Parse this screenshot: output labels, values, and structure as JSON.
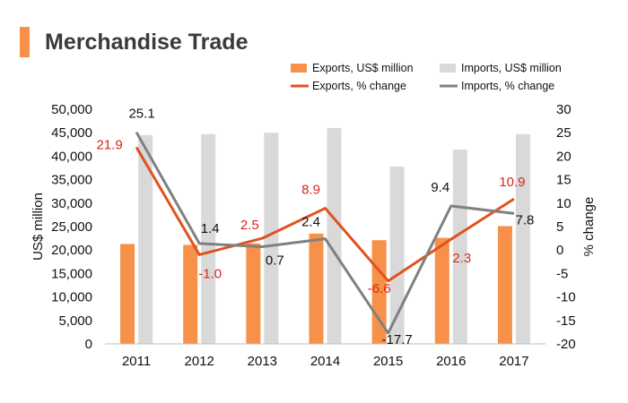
{
  "title": "Merchandise Trade",
  "chart_data": {
    "type": "bar",
    "categories": [
      "2011",
      "2012",
      "2013",
      "2014",
      "2015",
      "2016",
      "2017"
    ],
    "series": [
      {
        "name": "Exports, US$ million",
        "kind": "bar",
        "axis": "left",
        "color": "#f7914a",
        "values": [
          21300,
          21100,
          21400,
          23500,
          22100,
          22600,
          25100
        ]
      },
      {
        "name": "Imports, US$ million",
        "kind": "bar",
        "axis": "left",
        "color": "#d9d9d9",
        "values": [
          44500,
          44700,
          45000,
          46000,
          37800,
          41400,
          44700
        ]
      },
      {
        "name": "Exports, % change",
        "kind": "line",
        "axis": "right",
        "color": "#e0521f",
        "values": [
          21.9,
          -1.0,
          2.5,
          8.9,
          -6.6,
          2.3,
          10.9
        ]
      },
      {
        "name": "Imports, % change",
        "kind": "line",
        "axis": "right",
        "color": "#808080",
        "values": [
          25.1,
          1.4,
          0.7,
          2.4,
          -17.7,
          9.4,
          7.8
        ]
      }
    ],
    "ylabel_left": "US$ million",
    "ylabel_right": "% change",
    "ylim_left": [
      0,
      50000
    ],
    "ylim_right": [
      -20,
      30
    ],
    "yticks_left": [
      "0",
      "5,000",
      "10,000",
      "15,000",
      "20,000",
      "25,000",
      "30,000",
      "35,000",
      "40,000",
      "45,000",
      "50,000"
    ],
    "yticks_right": [
      "-20",
      "-15",
      "-10",
      "-5",
      "0",
      "5",
      "10",
      "15",
      "20",
      "25",
      "30"
    ],
    "data_labels": {
      "exports_change": [
        "21.9",
        "-1.0",
        "2.5",
        "8.9",
        "-6.6",
        "2.3",
        "10.9"
      ],
      "imports_change": [
        "25.1",
        "1.4",
        "0.7",
        "2.4",
        "-17.7",
        "9.4",
        "7.8"
      ]
    },
    "grid": false,
    "legend": "top-right"
  }
}
